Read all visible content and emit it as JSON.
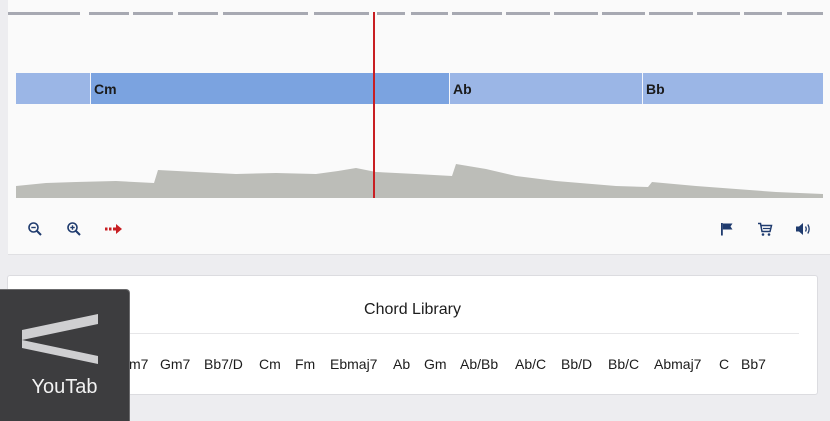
{
  "colors": {
    "chord_lane": "#9bb6e6",
    "active_chord": "#7ba3e0",
    "playhead": "#c81e22",
    "waveform": "#bcbdb8",
    "icons": "#1f3b6e"
  },
  "chord_timeline": [
    {
      "label": ""
    },
    {
      "label": "Cm"
    },
    {
      "label": "Ab"
    },
    {
      "label": "Bb"
    }
  ],
  "controls": {
    "left": [
      {
        "icon": "zoom-out-icon"
      },
      {
        "icon": "zoom-in-icon"
      },
      {
        "icon": "follow-playhead-icon"
      }
    ],
    "right": [
      {
        "icon": "flag-icon"
      },
      {
        "icon": "cart-icon"
      },
      {
        "icon": "volume-icon"
      }
    ]
  },
  "chord_library": {
    "title": "Chord Library",
    "chords": [
      "m7",
      "Gm7",
      "Bb7/D",
      "Cm",
      "Fm",
      "Ebmaj7",
      "Ab",
      "Gm",
      "Ab/Bb",
      "Ab/C",
      "Bb/D",
      "Bb/C",
      "Abmaj7",
      "C",
      "Bb7"
    ]
  },
  "overlay": {
    "brand": "YouTab"
  }
}
